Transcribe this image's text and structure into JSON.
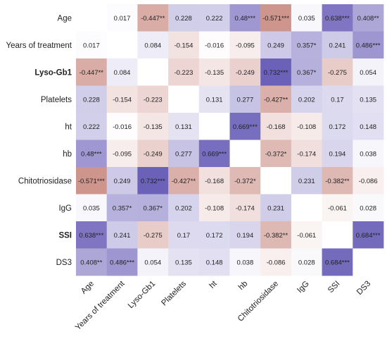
{
  "chart_data": {
    "type": "heatmap",
    "title": "",
    "xlabel": "",
    "ylabel": "",
    "row_labels": [
      "Age",
      "Years of treatment",
      "Lyso-Gb1",
      "Platelets",
      "ht",
      "hb",
      "Chitotriosidase",
      "IgG",
      "SSI",
      "DS3"
    ],
    "col_labels": [
      "Age",
      "Years of treatment",
      "Lyso-Gb1",
      "Platelets",
      "ht",
      "hb",
      "Chitotriosidase",
      "IgG",
      "SSI",
      "DS3"
    ],
    "bold_row_labels": [
      "Lyso-Gb1",
      "SSI"
    ],
    "values": [
      [
        null,
        0.017,
        -0.447,
        0.228,
        0.222,
        0.48,
        -0.571,
        0.035,
        0.638,
        0.408
      ],
      [
        0.017,
        null,
        0.084,
        -0.154,
        -0.016,
        -0.095,
        0.249,
        0.357,
        0.241,
        0.486
      ],
      [
        -0.447,
        0.084,
        null,
        -0.223,
        -0.135,
        -0.249,
        0.732,
        0.367,
        -0.275,
        0.054
      ],
      [
        0.228,
        -0.154,
        -0.223,
        null,
        0.131,
        0.277,
        -0.427,
        0.202,
        0.17,
        0.135
      ],
      [
        0.222,
        -0.016,
        -0.135,
        0.131,
        null,
        0.669,
        -0.168,
        -0.108,
        0.172,
        0.148
      ],
      [
        0.48,
        -0.095,
        -0.249,
        0.277,
        0.669,
        null,
        -0.372,
        -0.174,
        0.194,
        0.038
      ],
      [
        -0.571,
        0.249,
        0.732,
        -0.427,
        -0.168,
        -0.372,
        null,
        0.231,
        -0.382,
        -0.086
      ],
      [
        0.035,
        0.357,
        0.367,
        0.202,
        -0.108,
        -0.174,
        0.231,
        null,
        -0.061,
        0.028
      ],
      [
        0.638,
        0.241,
        -0.275,
        0.17,
        0.172,
        0.194,
        -0.382,
        -0.061,
        null,
        0.684
      ],
      [
        0.408,
        0.486,
        0.054,
        0.135,
        0.148,
        0.038,
        -0.086,
        0.028,
        0.684,
        null
      ]
    ],
    "labels": [
      [
        "",
        "0.017",
        "-0.447**",
        "0.228",
        "0.222",
        "0.48***",
        "-0.571***",
        "0.035",
        "0.638***",
        "0.408**"
      ],
      [
        "0.017",
        "",
        "0.084",
        "-0.154",
        "-0.016",
        "-0.095",
        "0.249",
        "0.357*",
        "0.241",
        "0.486***"
      ],
      [
        "-0.447**",
        "0.084",
        "",
        "-0.223",
        "-0.135",
        "-0.249",
        "0.732***",
        "0.367*",
        "-0.275",
        "0.054"
      ],
      [
        "0.228",
        "-0.154",
        "-0.223",
        "",
        "0.131",
        "0.277",
        "-0.427**",
        "0.202",
        "0.17",
        "0.135"
      ],
      [
        "0.222",
        "-0.016",
        "-0.135",
        "0.131",
        "",
        "0.669***",
        "-0.168",
        "-0.108",
        "0.172",
        "0.148"
      ],
      [
        "0.48***",
        "-0.095",
        "-0.249",
        "0.277",
        "0.669***",
        "",
        "-0.372*",
        "-0.174",
        "0.194",
        "0.038"
      ],
      [
        "-0.571***",
        "0.249",
        "0.732***",
        "-0.427**",
        "-0.168",
        "-0.372*",
        "",
        "0.231",
        "-0.382**",
        "-0.086"
      ],
      [
        "0.035",
        "0.357*",
        "0.367*",
        "0.202",
        "-0.108",
        "-0.174",
        "0.231",
        "",
        "-0.061",
        "0.028"
      ],
      [
        "0.638***",
        "0.241",
        "-0.275",
        "0.17",
        "0.172",
        "0.194",
        "-0.382**",
        "-0.061",
        "",
        "0.684***"
      ],
      [
        "0.408**",
        "0.486***",
        "0.054",
        "0.135",
        "0.148",
        "0.038",
        "-0.086",
        "0.028",
        "0.684***",
        ""
      ]
    ],
    "colors": {
      "positive": "#6a5fb8",
      "negative": "#c0756b",
      "neutral": "#ffffff"
    },
    "grid": false,
    "legend": "none"
  }
}
